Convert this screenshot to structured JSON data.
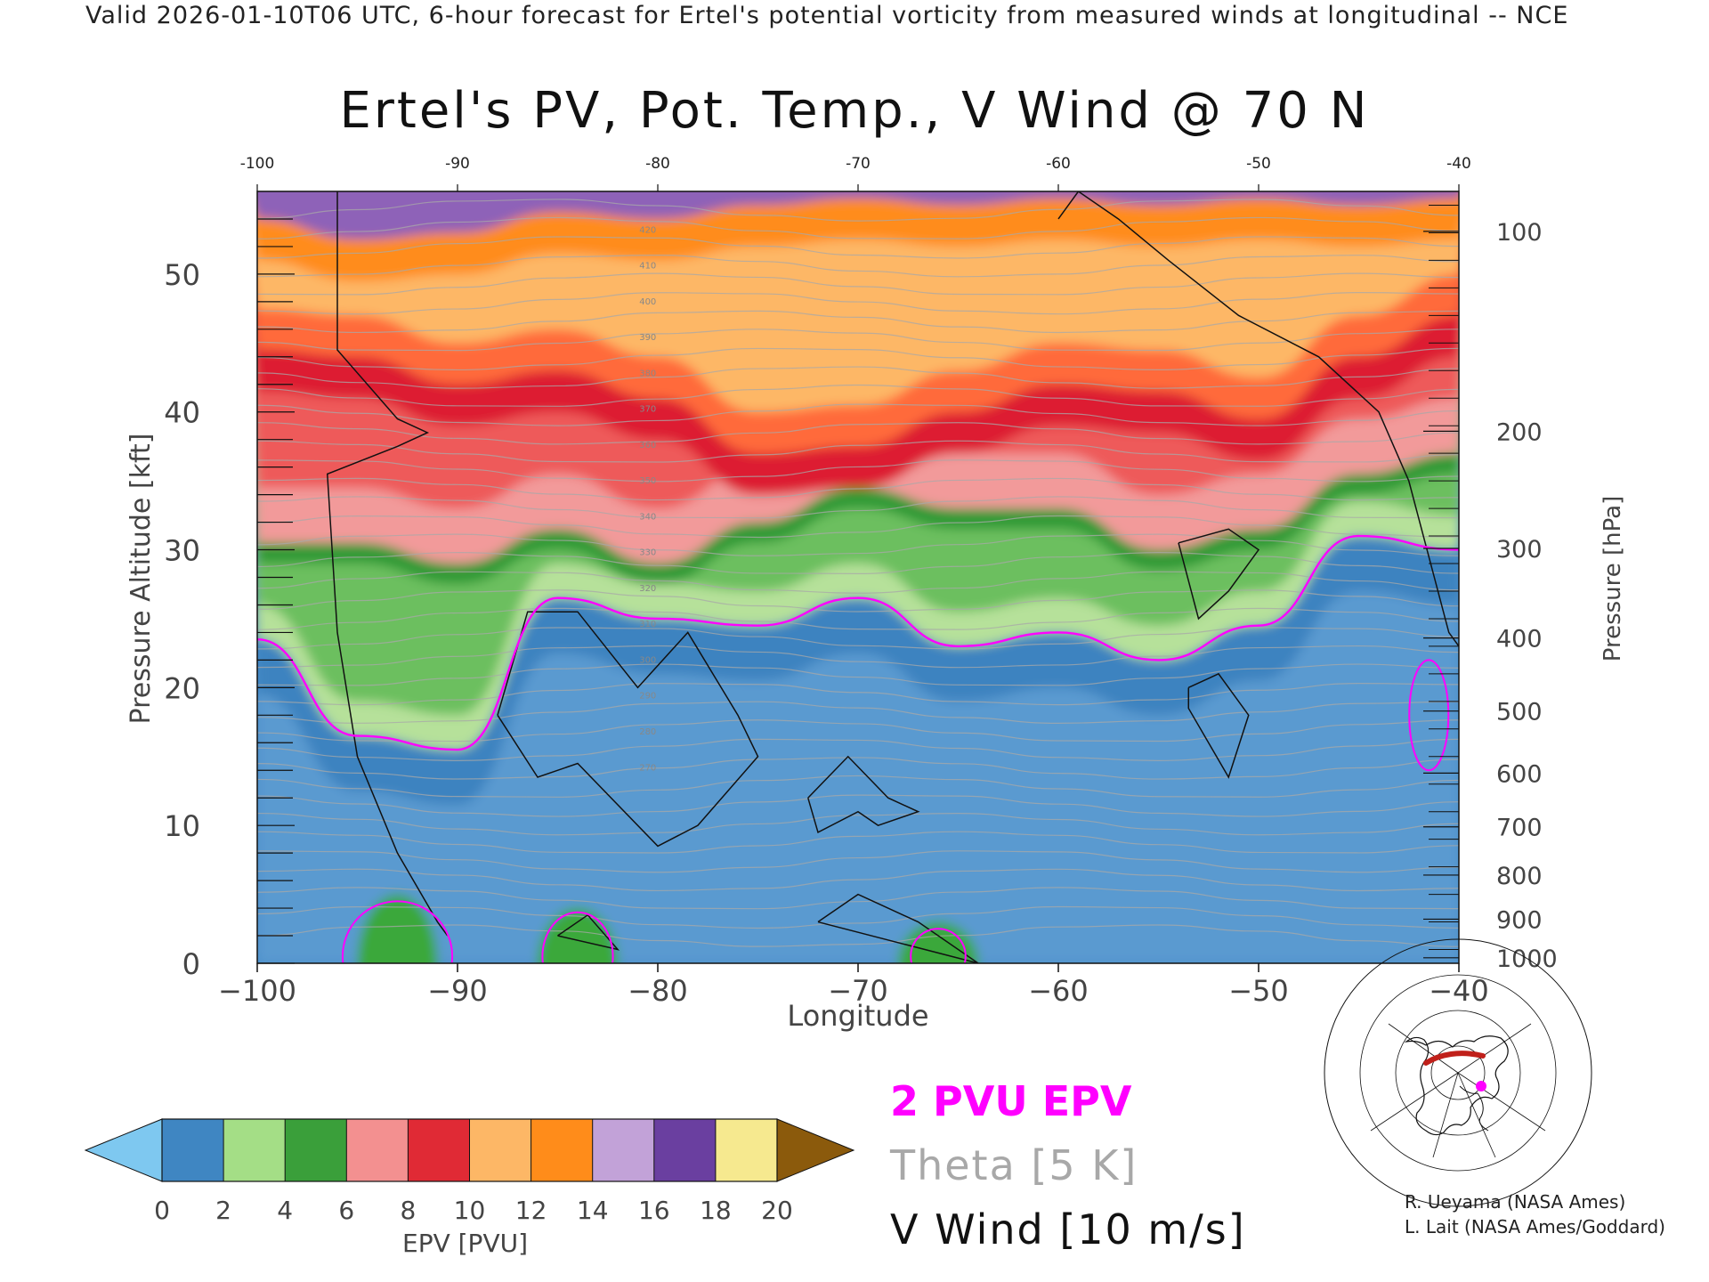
{
  "banner": "Valid 2026-01-10T06 UTC, 6-hour forecast for Ertel's potential vorticity from measured winds at longitudinal -- NCE",
  "chart_data": {
    "type": "heatmap",
    "title": "Ertel's PV, Pot. Temp., V Wind @ 70 N",
    "xlabel": "Longitude",
    "ylabel_left": "Pressure Altitude [kft]",
    "ylabel_right": "Pressure [hPa]",
    "xlim": [
      -100,
      -40
    ],
    "ylim": [
      0,
      56
    ],
    "x_ticks": [
      -100,
      -90,
      -80,
      -70,
      -60,
      -50,
      -40
    ],
    "x_ticks_top": [
      -100,
      -90,
      -80,
      -70,
      -60,
      -50,
      -40
    ],
    "y_ticks": [
      0,
      10,
      20,
      30,
      40,
      50
    ],
    "pressure_ticks": [
      {
        "hpa": 100,
        "kft": 53.1
      },
      {
        "hpa": 200,
        "kft": 38.6
      },
      {
        "hpa": 300,
        "kft": 30.1
      },
      {
        "hpa": 400,
        "kft": 23.6
      },
      {
        "hpa": 500,
        "kft": 18.3
      },
      {
        "hpa": 600,
        "kft": 13.8
      },
      {
        "hpa": 700,
        "kft": 9.9
      },
      {
        "hpa": 800,
        "kft": 6.4
      },
      {
        "hpa": 900,
        "kft": 3.2
      },
      {
        "hpa": 1000,
        "kft": 0.4
      }
    ],
    "colorbar": {
      "label": "EPV [PVU]",
      "ticks": [
        0,
        2,
        4,
        6,
        8,
        10,
        12,
        14,
        16,
        18,
        20
      ],
      "colors": [
        "#7ec8f0",
        "#3f86c2",
        "#a4de86",
        "#3a9f3a",
        "#f39090",
        "#e02a35",
        "#fdb766",
        "#ff8c1a",
        "#c2a2d8",
        "#6a3fa0",
        "#f6e98f",
        "#8b5a0c"
      ]
    },
    "field": {
      "description_values": "EPV by layer (PVU)",
      "x": [
        -100,
        -95,
        -90,
        -85,
        -80,
        -75,
        -70,
        -65,
        -60,
        -55,
        -50,
        -45,
        -40
      ],
      "two_pvu_altitude_kft": [
        23.5,
        16.5,
        15.5,
        26.5,
        25.0,
        24.5,
        26.5,
        23.0,
        24.0,
        22.0,
        24.5,
        31.0,
        30.0
      ],
      "six_pvu_altitude_kft": [
        30.5,
        30.5,
        29.0,
        31.5,
        29.0,
        32.0,
        34.5,
        33.0,
        33.0,
        30.0,
        31.5,
        35.5,
        37.0
      ],
      "ten_pvu_altitude_kft": [
        44.5,
        44.0,
        42.0,
        43.0,
        41.0,
        37.0,
        37.5,
        40.0,
        42.0,
        41.5,
        39.5,
        44.0,
        47.0
      ],
      "fourteen_pvu_altitude_kft": [
        54.0,
        52.5,
        53.0,
        54.5,
        54.0,
        55.0,
        55.5,
        55.0,
        55.5,
        55.0,
        55.5,
        55.0,
        55.5
      ]
    },
    "theta_contour_interval": "5 K",
    "theta_labels": [
      "420",
      "410",
      "400",
      "390",
      "380",
      "370",
      "360",
      "350",
      "340",
      "330",
      "320",
      "310",
      "300",
      "290",
      "280",
      "270"
    ],
    "vwind_contours": [
      -10,
      0,
      10
    ]
  },
  "legend": {
    "epv": "2 PVU EPV",
    "theta": "Theta [5 K]",
    "vwind": "V Wind [10 m/s]"
  },
  "credits": {
    "line1": "R. Ueyama (NASA Ames)",
    "line2": "L. Lait (NASA Ames/Goddard)"
  },
  "colors": {
    "pv2_contour": "#ff00ff",
    "theta_contour": "#a8a8a8",
    "wind_contour": "#111111",
    "map_track": "#c0201a",
    "map_point": "#ff00ff"
  },
  "inset_map": {
    "icon": "polar-map-icon"
  }
}
